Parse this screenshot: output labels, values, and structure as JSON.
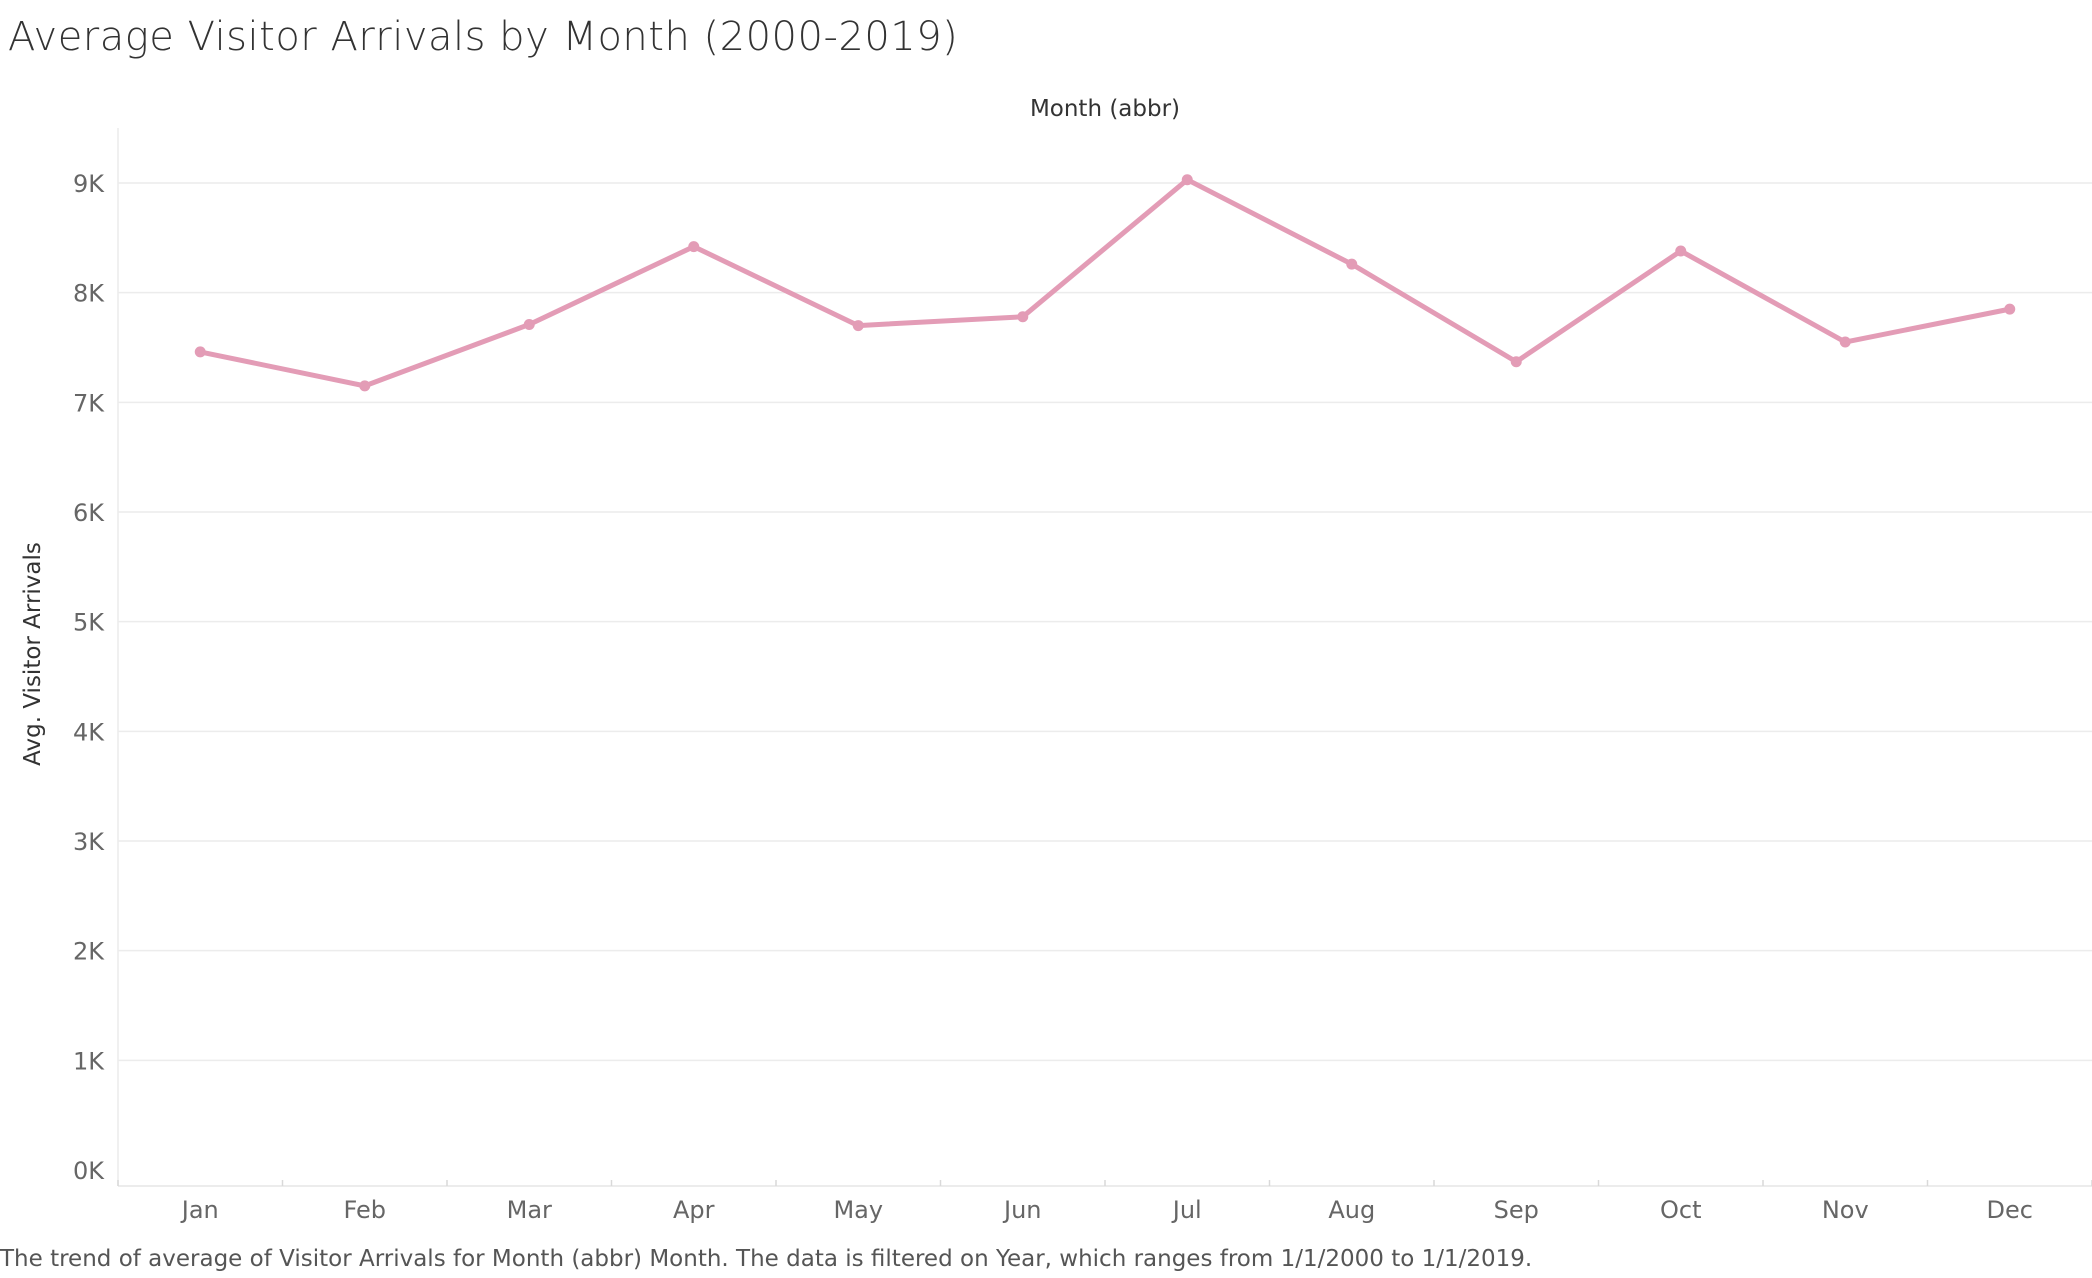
{
  "chart_data": {
    "type": "line",
    "title": "Average Visitor Arrivals by Month (2000-2019)",
    "xlabel": "Month (abbr)",
    "ylabel": "Avg. Visitor Arrivals",
    "categories": [
      "Jan",
      "Feb",
      "Mar",
      "Apr",
      "May",
      "Jun",
      "Jul",
      "Aug",
      "Sep",
      "Oct",
      "Nov",
      "Dec"
    ],
    "series": [
      {
        "values": [
          7460,
          7150,
          7710,
          8420,
          7700,
          7780,
          9030,
          8260,
          7370,
          8380,
          7550,
          7850
        ]
      }
    ],
    "ylim": [
      0,
      9500
    ],
    "yticks": [
      0,
      1000,
      2000,
      3000,
      4000,
      5000,
      6000,
      7000,
      8000,
      9000
    ],
    "ytick_labels": [
      "0K",
      "1K",
      "2K",
      "3K",
      "4K",
      "5K",
      "6K",
      "7K",
      "8K",
      "9K"
    ],
    "line_color": "#E39CB6",
    "grid": true,
    "caption": "The trend of average of Visitor Arrivals for Month (abbr) Month. The data is filtered on Year, which ranges from 1/1/2000 to 1/1/2019."
  }
}
